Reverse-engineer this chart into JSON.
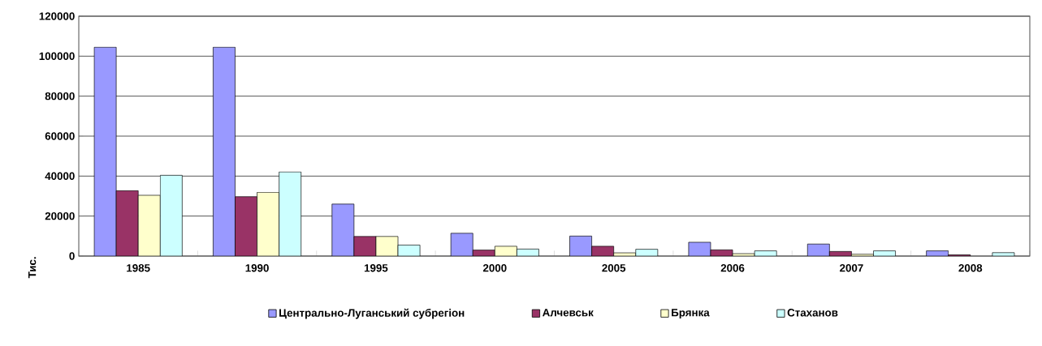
{
  "chart_data": {
    "type": "bar",
    "ylabel": "Тис.",
    "categories": [
      "1985",
      "1990",
      "1995",
      "2000",
      "2005",
      "2006",
      "2007",
      "2008"
    ],
    "series": [
      {
        "name": "Центрально-Луганський субрегіон",
        "color": "#9999ff",
        "values": [
          104500,
          104500,
          26000,
          11400,
          10000,
          6900,
          6000,
          2600
        ]
      },
      {
        "name": "Алчевськ",
        "color": "#993366",
        "values": [
          32700,
          29700,
          9800,
          3000,
          4900,
          3100,
          2300,
          600
        ]
      },
      {
        "name": "Брянка",
        "color": "#ffffcc",
        "values": [
          30400,
          31900,
          9800,
          4900,
          1600,
          1200,
          900,
          null
        ]
      },
      {
        "name": "Стаханов",
        "color": "#ccffff",
        "values": [
          40400,
          42100,
          5500,
          3500,
          3400,
          2600,
          2600,
          1700
        ]
      }
    ],
    "ylim": [
      0,
      120000
    ],
    "yticks": [
      0,
      20000,
      40000,
      60000,
      80000,
      100000,
      120000
    ],
    "grid": "y",
    "legend": "bottom"
  }
}
